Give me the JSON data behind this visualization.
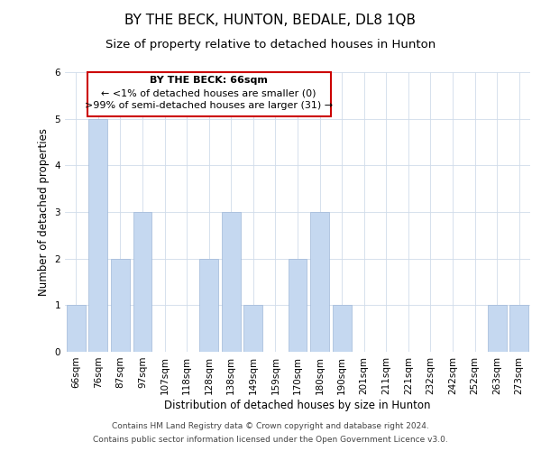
{
  "title": "BY THE BECK, HUNTON, BEDALE, DL8 1QB",
  "subtitle": "Size of property relative to detached houses in Hunton",
  "xlabel": "Distribution of detached houses by size in Hunton",
  "ylabel": "Number of detached properties",
  "categories": [
    "66sqm",
    "76sqm",
    "87sqm",
    "97sqm",
    "107sqm",
    "118sqm",
    "128sqm",
    "138sqm",
    "149sqm",
    "159sqm",
    "170sqm",
    "180sqm",
    "190sqm",
    "201sqm",
    "211sqm",
    "221sqm",
    "232sqm",
    "242sqm",
    "252sqm",
    "263sqm",
    "273sqm"
  ],
  "values": [
    1,
    5,
    2,
    3,
    0,
    0,
    2,
    3,
    1,
    0,
    2,
    3,
    1,
    0,
    0,
    0,
    0,
    0,
    0,
    1,
    1
  ],
  "bar_color": "#c5d8f0",
  "bar_edgecolor": "#a0b8d8",
  "ylim": [
    0,
    6
  ],
  "yticks": [
    0,
    1,
    2,
    3,
    4,
    5,
    6
  ],
  "annotation_title": "BY THE BECK: 66sqm",
  "annotation_line1": "← <1% of detached houses are smaller (0)",
  "annotation_line2": ">99% of semi-detached houses are larger (31) →",
  "annotation_box_color": "#ffffff",
  "annotation_box_edgecolor": "#cc0000",
  "footer_line1": "Contains HM Land Registry data © Crown copyright and database right 2024.",
  "footer_line2": "Contains public sector information licensed under the Open Government Licence v3.0.",
  "background_color": "#ffffff",
  "grid_color": "#d0dcea",
  "title_fontsize": 11,
  "subtitle_fontsize": 9.5,
  "axis_label_fontsize": 8.5,
  "tick_fontsize": 7.5,
  "annotation_fontsize": 8,
  "footer_fontsize": 6.5
}
